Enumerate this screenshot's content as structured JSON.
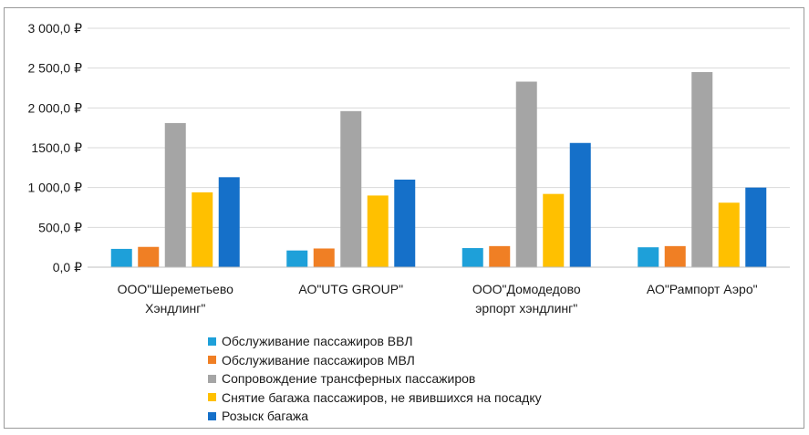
{
  "chart_data": {
    "type": "bar",
    "title": "",
    "xlabel": "",
    "ylabel": "",
    "ylim": [
      0,
      3000
    ],
    "ytick_values": [
      0,
      500,
      1000,
      1500,
      2000,
      2500,
      3000
    ],
    "ytick_labels": [
      "0,0 ₽",
      "500,0 ₽",
      "1 000,0 ₽",
      "1500,0 ₽",
      "2 000,0 ₽",
      "2 500,0 ₽",
      "3 000,0 ₽"
    ],
    "grid": true,
    "legend_position": "bottom",
    "categories": [
      [
        "ООО\"Шереметьево",
        "Хэндлинг\""
      ],
      [
        "АО\"UTG GROUP\""
      ],
      [
        "ООО\"Домодедово",
        "эрпорт хэндлинг\""
      ],
      [
        "АО\"Рампорт Аэро\""
      ]
    ],
    "series": [
      {
        "name": "Обслуживание пассажиров ВВЛ",
        "color": "#1ea0d9",
        "values": [
          230,
          210,
          240,
          250
        ]
      },
      {
        "name": "Обслуживание пассажиров МВЛ",
        "color": "#f07f24",
        "values": [
          255,
          235,
          265,
          265
        ]
      },
      {
        "name": "Сопровождение трансферных пассажиров",
        "color": "#a5a5a5",
        "values": [
          1810,
          1960,
          2330,
          2450
        ]
      },
      {
        "name": "Снятие багажа пассажиров, не явившихся на посадку",
        "color": "#ffc000",
        "values": [
          940,
          900,
          920,
          810
        ]
      },
      {
        "name": "Розыск багажа",
        "color": "#1570c9",
        "values": [
          1130,
          1100,
          1560,
          1000
        ]
      }
    ]
  }
}
